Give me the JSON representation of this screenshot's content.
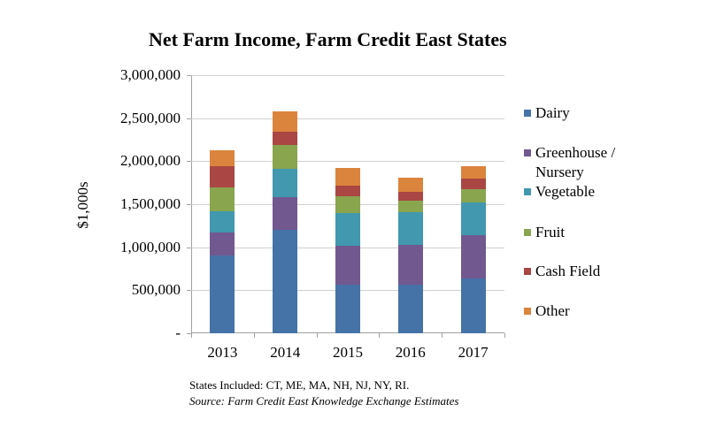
{
  "chart_data": {
    "type": "bar",
    "stacked": true,
    "title": "Net Farm Income, Farm Credit East States",
    "xlabel": "",
    "ylabel": "$1,000s",
    "ylim": [
      0,
      3000000
    ],
    "yticks": [
      0,
      500000,
      1000000,
      1500000,
      2000000,
      2500000,
      3000000
    ],
    "ytick_labels": [
      "-",
      "500,000",
      "1,000,000",
      "1,500,000",
      "2,000,000",
      "2,500,000",
      "3,000,000"
    ],
    "grid": true,
    "legend_position": "right",
    "categories": [
      "2013",
      "2014",
      "2015",
      "2016",
      "2017"
    ],
    "series": [
      {
        "name": "Dairy",
        "color": "#4572A7",
        "values": [
          900000,
          1200000,
          570000,
          570000,
          640000
        ]
      },
      {
        "name": "Greenhouse / Nursery",
        "color": "#71588F",
        "values": [
          275000,
          385000,
          445000,
          460000,
          500000
        ]
      },
      {
        "name": "Vegetable",
        "color": "#4198AF",
        "values": [
          245000,
          325000,
          385000,
          375000,
          385000
        ]
      },
      {
        "name": "Fruit",
        "color": "#89A54E",
        "values": [
          275000,
          275000,
          195000,
          135000,
          150000
        ]
      },
      {
        "name": "Cash Field",
        "color": "#AA4643",
        "values": [
          250000,
          155000,
          125000,
          100000,
          120000
        ]
      },
      {
        "name": "Other",
        "color": "#DB843D",
        "values": [
          185000,
          235000,
          205000,
          170000,
          150000
        ]
      }
    ]
  },
  "legend": {
    "items": [
      {
        "lines": [
          "Dairy"
        ],
        "color": "#4572A7"
      },
      {
        "lines": [
          "Greenhouse /",
          "Nursery"
        ],
        "color": "#71588F"
      },
      {
        "lines": [
          "Vegetable"
        ],
        "color": "#4198AF"
      },
      {
        "lines": [
          "Fruit"
        ],
        "color": "#89A54E"
      },
      {
        "lines": [
          "Cash Field"
        ],
        "color": "#AA4643"
      },
      {
        "lines": [
          "Other"
        ],
        "color": "#DB843D"
      }
    ]
  },
  "notes": {
    "states": "States Included: CT, ME, MA, NH, NJ, NY, RI.",
    "source": "Source: Farm Credit East Knowledge Exchange Estimates"
  }
}
